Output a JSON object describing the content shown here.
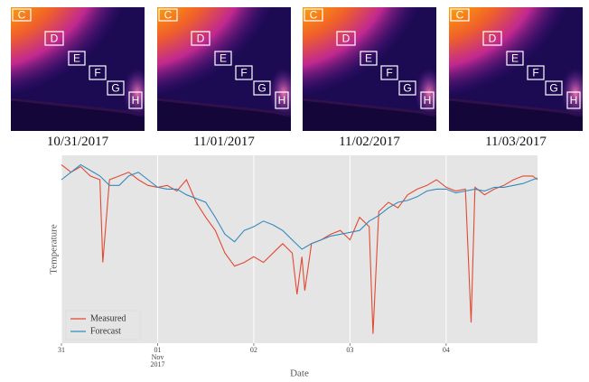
{
  "panels": [
    {
      "caption": "10/31/2017",
      "labels": [
        "C",
        "D",
        "E",
        "F",
        "G",
        "H"
      ]
    },
    {
      "caption": "11/01/2017",
      "labels": [
        "C",
        "D",
        "E",
        "F",
        "G",
        "H"
      ]
    },
    {
      "caption": "11/02/2017",
      "labels": [
        "C",
        "D",
        "E",
        "F",
        "G",
        "H"
      ]
    },
    {
      "caption": "11/03/2017",
      "labels": [
        "C",
        "D",
        "E",
        "F",
        "G",
        "H"
      ]
    }
  ],
  "chart_data": {
    "type": "line",
    "x_label": "Date",
    "y_label": "Temperature",
    "xlim": [
      0,
      4.95
    ],
    "ylim": [
      0,
      100
    ],
    "xticks": [
      {
        "value": 0,
        "label": "31"
      },
      {
        "value": 1,
        "label": "01\nNov\n2017"
      },
      {
        "value": 2,
        "label": "02"
      },
      {
        "value": 3,
        "label": "03"
      },
      {
        "value": 4,
        "label": "04"
      }
    ],
    "grid": true,
    "legend": "lower left",
    "series": [
      {
        "name": "Measured",
        "color": "#e24a33",
        "x": [
          0,
          0.1,
          0.2,
          0.3,
          0.4,
          0.43,
          0.5,
          0.6,
          0.7,
          0.8,
          0.9,
          1.0,
          1.1,
          1.2,
          1.3,
          1.4,
          1.5,
          1.6,
          1.7,
          1.8,
          1.9,
          2.0,
          2.1,
          2.2,
          2.3,
          2.4,
          2.45,
          2.5,
          2.53,
          2.6,
          2.7,
          2.8,
          2.9,
          3.0,
          3.1,
          3.2,
          3.24,
          3.3,
          3.4,
          3.5,
          3.6,
          3.7,
          3.8,
          3.9,
          4.0,
          4.1,
          4.2,
          4.26,
          4.3,
          4.4,
          4.5,
          4.6,
          4.7,
          4.8,
          4.9,
          4.95
        ],
        "values": [
          95,
          91,
          94,
          89,
          87,
          43,
          87,
          89,
          91,
          87,
          84,
          83,
          84,
          81,
          87,
          75,
          67,
          60,
          48,
          41,
          43,
          46,
          43,
          48,
          53,
          48,
          26,
          46,
          28,
          53,
          55,
          58,
          60,
          55,
          67,
          62,
          5,
          70,
          75,
          72,
          79,
          82,
          84,
          87,
          83,
          81,
          82,
          11,
          83,
          79,
          82,
          84,
          87,
          89,
          89,
          87
        ]
      },
      {
        "name": "Forecast",
        "color": "#348abd",
        "x": [
          0,
          0.1,
          0.2,
          0.3,
          0.4,
          0.5,
          0.6,
          0.7,
          0.8,
          0.9,
          1.0,
          1.1,
          1.2,
          1.3,
          1.4,
          1.5,
          1.6,
          1.7,
          1.8,
          1.9,
          2.0,
          2.1,
          2.2,
          2.3,
          2.4,
          2.5,
          2.6,
          2.7,
          2.8,
          2.9,
          3.0,
          3.1,
          3.2,
          3.3,
          3.4,
          3.5,
          3.6,
          3.7,
          3.8,
          3.9,
          4.0,
          4.1,
          4.2,
          4.3,
          4.4,
          4.5,
          4.6,
          4.7,
          4.8,
          4.9,
          4.95
        ],
        "values": [
          87,
          91,
          95,
          92,
          89,
          84,
          84,
          89,
          91,
          87,
          83,
          82,
          82,
          79,
          77,
          75,
          67,
          58,
          54,
          60,
          62,
          65,
          63,
          60,
          55,
          50,
          53,
          55,
          57,
          58,
          59,
          60,
          65,
          68,
          72,
          75,
          76,
          78,
          81,
          82,
          82,
          80,
          81,
          82,
          81,
          83,
          83,
          84,
          85,
          87,
          88
        ]
      }
    ]
  }
}
